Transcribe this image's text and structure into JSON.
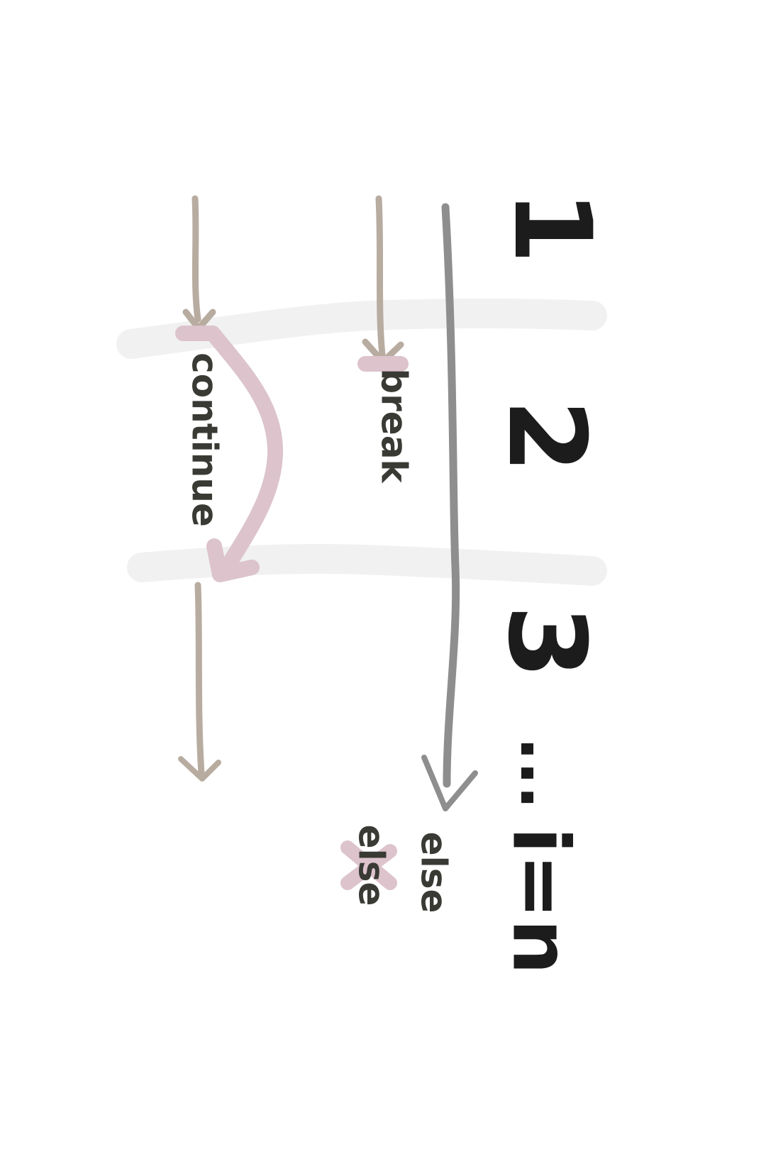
{
  "diagram": {
    "loop_steps": [
      "1",
      "2",
      "3"
    ],
    "ellipsis": "...",
    "iteration_label": "i=n",
    "labels": {
      "continue": "continue",
      "break": "break",
      "else_kept": "else",
      "else_struck": "else"
    },
    "colors": {
      "background": "#ffffff",
      "boundary_band": "#f1f1f1",
      "flow_line_light": "#b8aca0",
      "flow_line_dark": "#8e8e8e",
      "highlight_pink": "#dcc3cc",
      "ink": "#1c1c1c"
    }
  }
}
